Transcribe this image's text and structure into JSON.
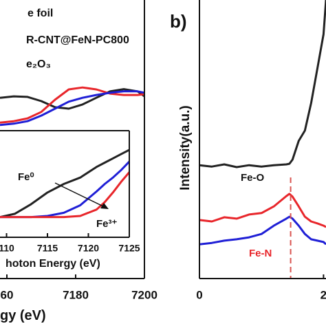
{
  "chart_data": [
    {
      "type": "line",
      "legend": [
        "e foil",
        "R-CNT@FeN-PC800",
        "e₂O₃"
      ],
      "x_label": "gy (eV)",
      "x": [
        7158,
        7162,
        7166,
        7170,
        7174,
        7178,
        7182,
        7186,
        7190,
        7194,
        7198,
        7200
      ],
      "xlim": [
        7158,
        7200
      ],
      "xticks": [
        {
          "value": 7160,
          "label": "60"
        },
        7180,
        7200
      ],
      "ylim": [
        0,
        100
      ],
      "series": [
        {
          "color": "#222222",
          "values": [
            64.9,
            65.4,
            65.2,
            63.7,
            61.5,
            61.0,
            62.5,
            64.9,
            67.2,
            68.0,
            67.2,
            65.4
          ]
        },
        {
          "color": "#e8262b",
          "values": [
            56.0,
            56.5,
            57.5,
            59.8,
            64.2,
            67.9,
            68.6,
            67.9,
            66.4,
            65.9,
            65.9,
            66.2
          ]
        },
        {
          "color": "#1f1fd6",
          "values": [
            55.1,
            55.6,
            56.5,
            58.5,
            61.0,
            63.5,
            64.9,
            65.9,
            66.7,
            67.2,
            67.2,
            66.7
          ]
        }
      ]
    },
    {
      "type": "line",
      "x_label": "hoton Energy (eV)",
      "annotations": [
        "Fe⁰",
        "Fe³⁺"
      ],
      "x": [
        7109.2,
        7111,
        7113,
        7115,
        7117,
        7119,
        7121,
        7122,
        7123,
        7124,
        7125
      ],
      "xlim": [
        7109.2,
        7125
      ],
      "xticks": [
        {
          "value": 7110,
          "label": "110"
        },
        7115,
        7120,
        7125
      ],
      "ylim": [
        0,
        1
      ],
      "series": [
        {
          "color": "#222222",
          "values": [
            0.19,
            0.22,
            0.31,
            0.42,
            0.5,
            0.56,
            0.66,
            0.7,
            0.74,
            0.78,
            0.82
          ]
        },
        {
          "color": "#1f1fd6",
          "values": [
            0.19,
            0.19,
            0.19,
            0.2,
            0.23,
            0.3,
            0.43,
            0.5,
            0.56,
            0.63,
            0.71
          ]
        },
        {
          "color": "#e8262b",
          "values": [
            0.19,
            0.19,
            0.19,
            0.19,
            0.19,
            0.2,
            0.26,
            0.33,
            0.42,
            0.52,
            0.61
          ]
        }
      ]
    },
    {
      "type": "line",
      "panel_label": "b)",
      "y_label": "Intensity(a.u.)",
      "annotations": [
        "Fe-O",
        "Fe-N"
      ],
      "x": [
        0,
        0.2,
        0.4,
        0.6,
        0.8,
        1.0,
        1.2,
        1.4,
        1.45,
        1.5,
        1.6,
        1.7,
        1.8,
        1.9,
        2.0,
        2.04
      ],
      "xlim": [
        0,
        2.04
      ],
      "xticks": [
        0,
        2
      ],
      "ylim": [
        0,
        100
      ],
      "reference_x": 1.47,
      "series": [
        {
          "color": "#222222",
          "values": [
            40.7,
            40.2,
            41.0,
            40.0,
            40.7,
            40.2,
            40.7,
            41.0,
            41.2,
            42.7,
            49.4,
            53.1,
            63.0,
            75.3,
            87.7,
            100
          ]
        },
        {
          "color": "#e8262b",
          "values": [
            21.0,
            20.5,
            22.0,
            21.5,
            23.0,
            23.5,
            25.9,
            29.6,
            30.4,
            29.4,
            25.9,
            22.2,
            20.5,
            19.8,
            19.0,
            18.5
          ]
        },
        {
          "color": "#1f1fd6",
          "values": [
            12.3,
            12.8,
            13.6,
            14.1,
            14.8,
            16.0,
            19.0,
            21.5,
            22.2,
            21.5,
            19.0,
            16.0,
            14.1,
            13.6,
            13.1,
            12.3
          ]
        }
      ]
    }
  ]
}
